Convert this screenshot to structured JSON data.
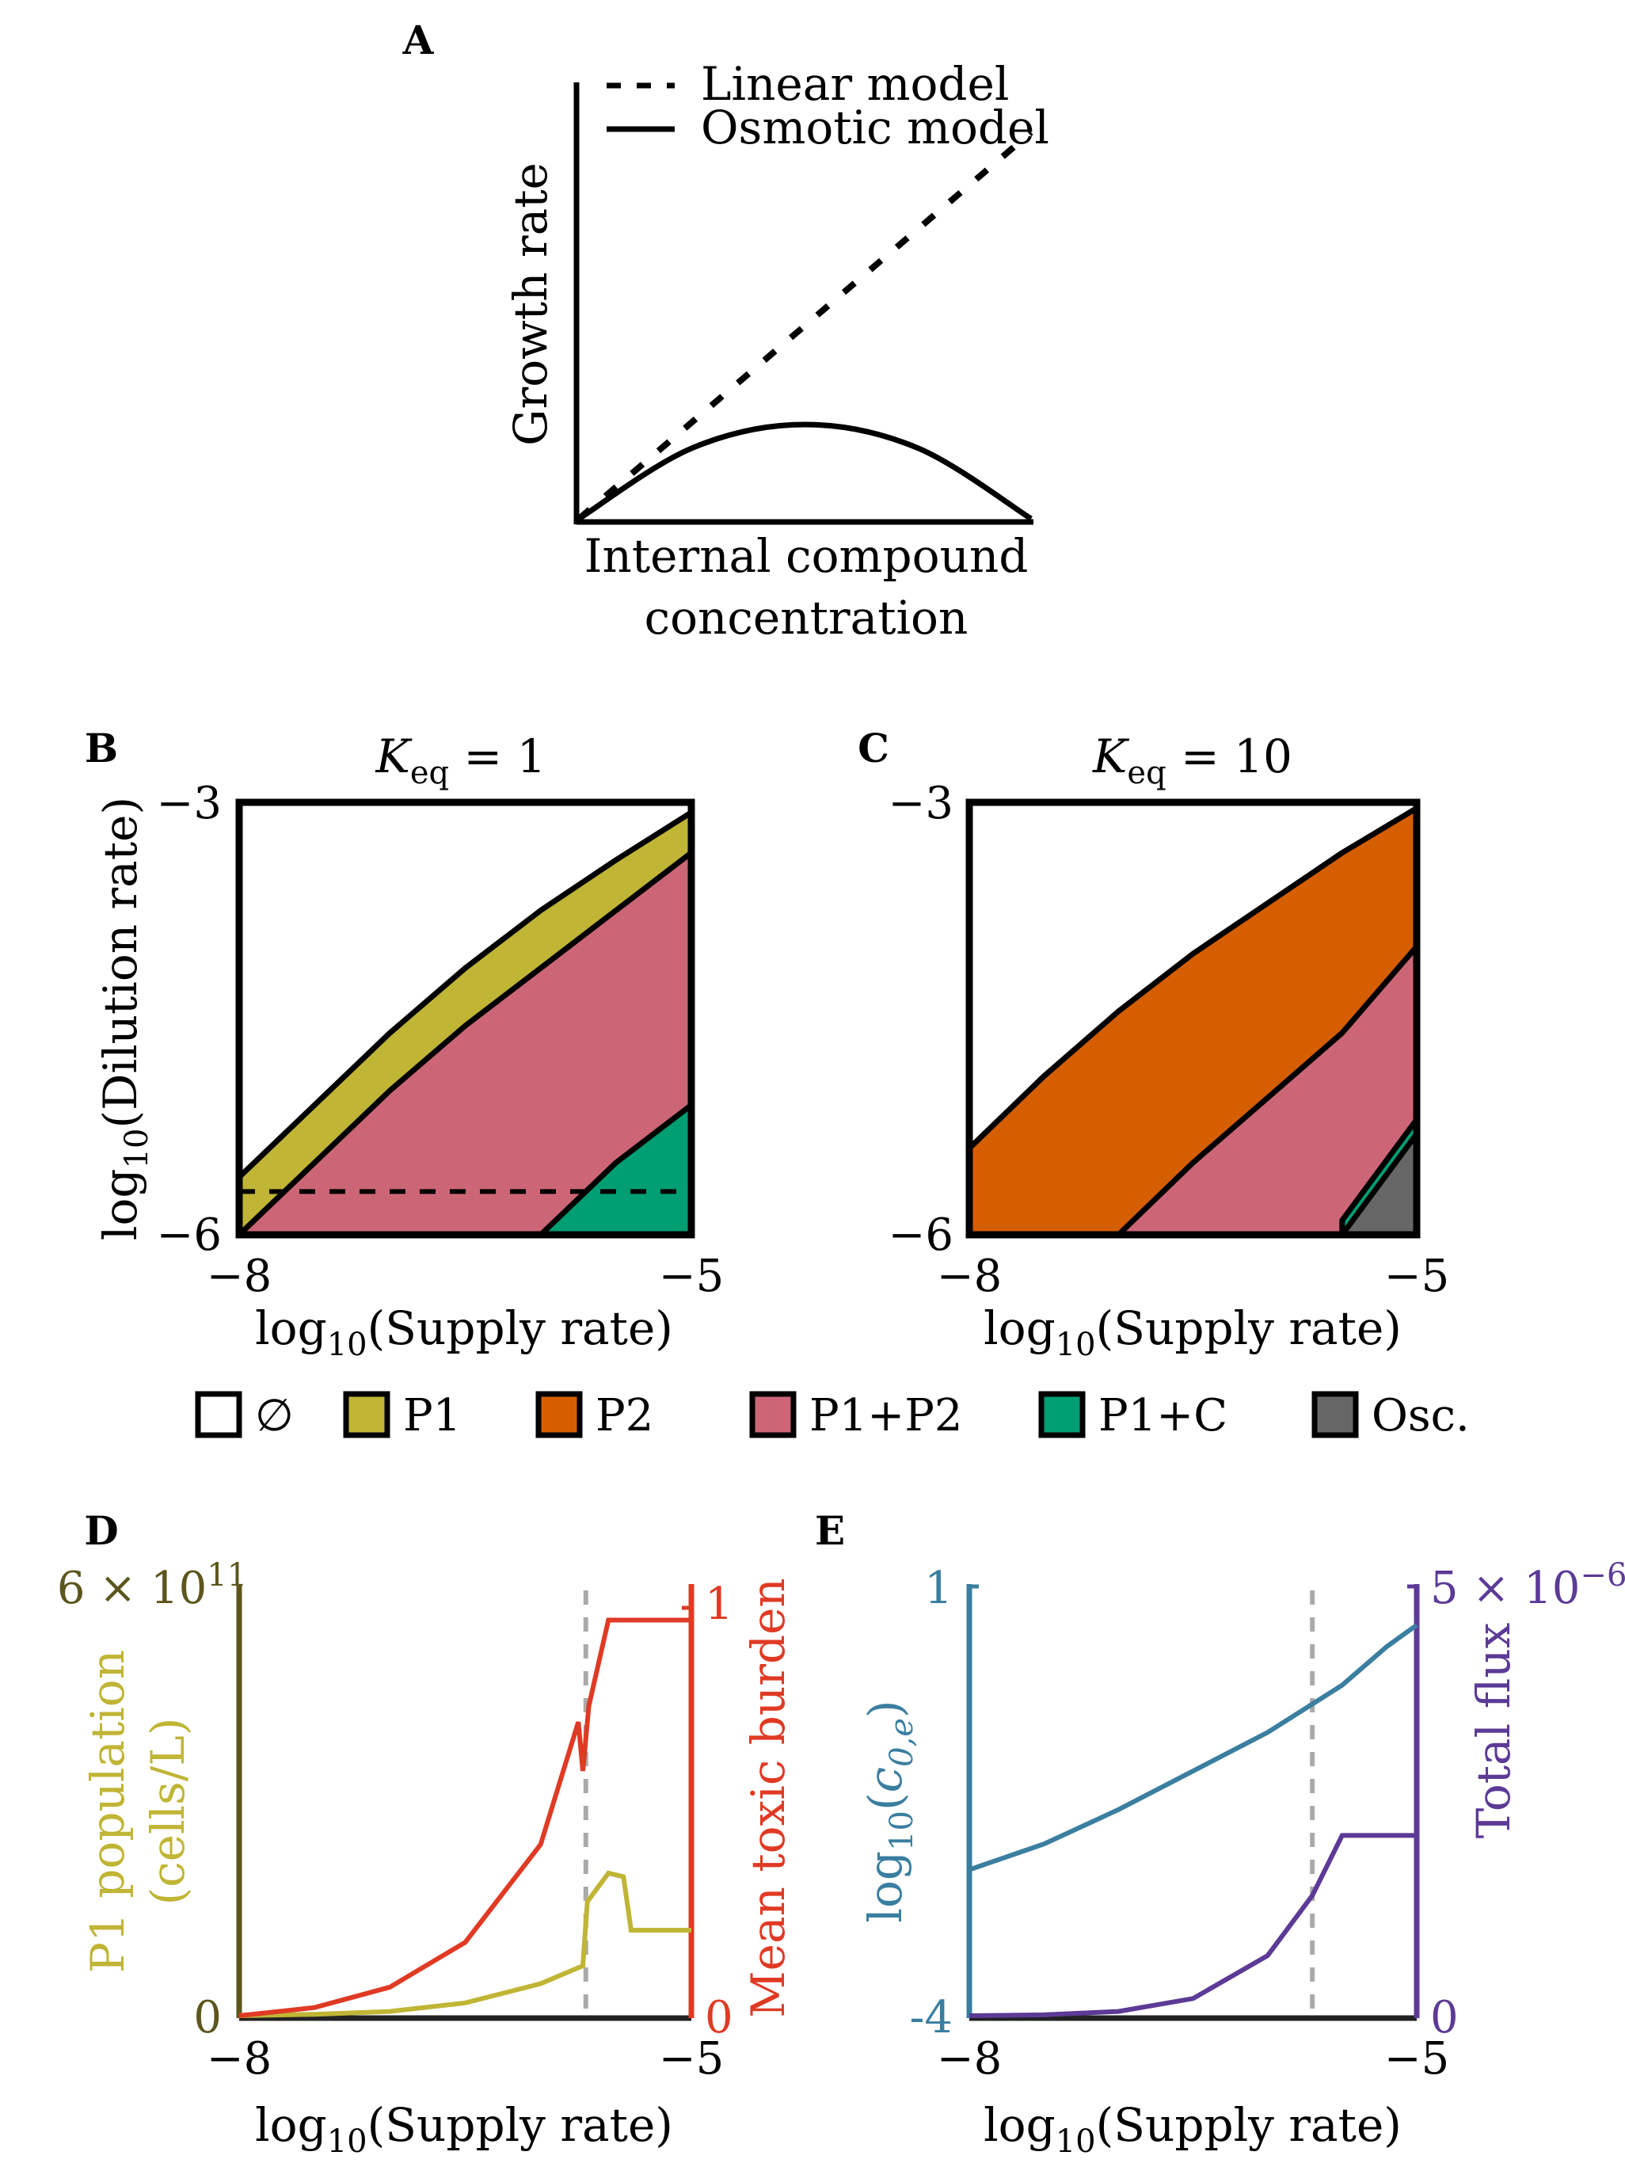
{
  "panels": {
    "A": {
      "label": "A",
      "ylabel": "Growth rate",
      "xlabel_line1": "Internal compound",
      "xlabel_line2": "concentration",
      "legend": [
        {
          "name": "Linear model",
          "style": "dashed"
        },
        {
          "name": "Osmotic model",
          "style": "solid"
        }
      ]
    },
    "B": {
      "label": "B",
      "title_var": "K",
      "title_sub": "eq",
      "title_rest": " = 1",
      "ylabel_pre": "log",
      "ylabel_sub": "10",
      "ylabel_post": "(Dilution rate)",
      "xlabel_pre": "log",
      "xlabel_sub": "10",
      "xlabel_post": "(Supply rate)",
      "xticks": [
        "−8",
        "−5"
      ],
      "yticks": [
        "−3",
        "−6"
      ]
    },
    "C": {
      "label": "C",
      "title_var": "K",
      "title_sub": "eq",
      "title_rest": " = 10",
      "xlabel_pre": "log",
      "xlabel_sub": "10",
      "xlabel_post": "(Supply rate)",
      "xticks": [
        "−8",
        "−5"
      ],
      "yticks": [
        "−3",
        "−6"
      ]
    },
    "D": {
      "label": "D",
      "left_axis_line1": "P1 population",
      "left_axis_line2": "(cells/L)",
      "right_axis_label": "Mean toxic burden",
      "left_top_pre": "6 × 10",
      "left_top_exp": "11",
      "left_bottom": "0",
      "right_top": "1",
      "right_bottom": "0",
      "xlabel_pre": "log",
      "xlabel_sub": "10",
      "xlabel_post": "(Supply rate)",
      "xticks": [
        "−8",
        "−5"
      ]
    },
    "E": {
      "label": "E",
      "left_axis_pre": "log",
      "left_axis_sub": "10",
      "left_axis_mid": "(",
      "left_axis_var": "c",
      "left_axis_var_sub": "0,e",
      "left_axis_post": ")",
      "right_axis_label": "Total flux",
      "left_top": "1",
      "left_bottom": "-4",
      "right_top_pre": "5 × 10",
      "right_top_exp": "−6",
      "right_bottom": "0",
      "xlabel_pre": "log",
      "xlabel_sub": "10",
      "xlabel_post": "(Supply rate)",
      "xticks": [
        "−8",
        "−5"
      ]
    }
  },
  "region_legend": [
    {
      "key": "empty",
      "label": "∅",
      "color": "#ffffff"
    },
    {
      "key": "P1",
      "label": "P1",
      "color": "#c0b535"
    },
    {
      "key": "P2",
      "label": "P2",
      "color": "#d55e00"
    },
    {
      "key": "P1P2",
      "label": "P1+P2",
      "color": "#cc6677"
    },
    {
      "key": "P1C",
      "label": "P1+C",
      "color": "#009e73"
    },
    {
      "key": "Osc",
      "label": "Osc.",
      "color": "#666666"
    }
  ],
  "colors": {
    "P1": "#c0b535",
    "P2": "#d55e00",
    "P1P2": "#cc6677",
    "P1C": "#009e73",
    "Osc": "#666666",
    "population_axis": "#5c561d",
    "toxic_burden": "#e03a24",
    "concentration": "#3a7ea0",
    "flux": "#5c3a96",
    "marker_line": "#aaaaaa"
  },
  "chart_data": [
    {
      "type": "line",
      "panel": "A",
      "xlabel": "Internal compound concentration",
      "ylabel": "Growth rate",
      "xlim": [
        0,
        1
      ],
      "ylim": [
        0,
        1
      ],
      "series": [
        {
          "name": "Linear model",
          "x": [
            0,
            1
          ],
          "y": [
            0,
            0.82
          ]
        },
        {
          "name": "Osmotic model",
          "x": [
            0,
            0.25,
            0.5,
            0.75,
            1
          ],
          "y": [
            0,
            0.15,
            0.2,
            0.15,
            0
          ]
        }
      ]
    },
    {
      "type": "area",
      "panel": "B",
      "xlabel": "log10(Supply rate)",
      "ylabel": "log10(Dilution rate)",
      "xlim": [
        -8,
        -5
      ],
      "ylim": [
        -6,
        -3
      ],
      "x": [
        -8.0,
        -7.5,
        -7.0,
        -6.5,
        -6.0,
        -5.5,
        -5.0
      ],
      "boundaries": {
        "upper_P1": [
          -5.6,
          -5.1,
          -4.6,
          -4.15,
          -3.75,
          -3.4,
          -3.07
        ],
        "upper_P1P2": [
          -6.0,
          -5.5,
          -5.0,
          -4.55,
          -4.15,
          -3.75,
          -3.35
        ],
        "upper_P1C": [
          null,
          null,
          null,
          null,
          -6.0,
          -5.5,
          -5.1
        ]
      },
      "marker_y": -5.7
    },
    {
      "type": "area",
      "panel": "C",
      "xlabel": "log10(Supply rate)",
      "xlim": [
        -8,
        -5
      ],
      "ylim": [
        -6,
        -3
      ],
      "x": [
        -8.0,
        -7.5,
        -7.0,
        -6.5,
        -6.0,
        -5.5,
        -5.0
      ],
      "boundaries": {
        "upper_P2": [
          -5.4,
          -4.9,
          -4.45,
          -4.05,
          -3.7,
          -3.35,
          -3.04
        ],
        "upper_P1P2": [
          null,
          null,
          -6.0,
          -5.5,
          -5.05,
          -4.6,
          -4.0
        ],
        "upper_P1C": [
          null,
          null,
          null,
          null,
          null,
          -5.9,
          -5.2
        ],
        "upper_Osc": [
          null,
          null,
          null,
          null,
          null,
          -6.0,
          -5.3
        ]
      }
    },
    {
      "type": "line",
      "panel": "D",
      "xlabel": "log10(Supply rate)",
      "xlim": [
        -8,
        -5
      ],
      "marker_x": -5.7,
      "series": [
        {
          "name": "P1 population",
          "axis": "left",
          "ylim": [
            0,
            600000000000.0
          ],
          "x": [
            -8.0,
            -7.5,
            -7.0,
            -6.5,
            -6.0,
            -5.72,
            -5.69,
            -5.55,
            -5.45,
            -5.4,
            -5.2,
            -5.0
          ],
          "y": [
            0,
            2000000000.0,
            6000000000.0,
            18000000000.0,
            45000000000.0,
            70000000000.0,
            160000000000.0,
            200000000000.0,
            195000000000.0,
            120000000000.0,
            120000000000.0,
            120000000000.0
          ]
        },
        {
          "name": "Mean toxic burden",
          "axis": "right",
          "ylim": [
            0,
            1
          ],
          "x": [
            -8.0,
            -7.5,
            -7.0,
            -6.5,
            -6.0,
            -5.75,
            -5.72,
            -5.68,
            -5.55,
            -5.4,
            -5.0
          ],
          "y": [
            0,
            0.02,
            0.07,
            0.18,
            0.42,
            0.72,
            0.6,
            0.76,
            0.97,
            0.97,
            0.97
          ]
        }
      ]
    },
    {
      "type": "line",
      "panel": "E",
      "xlabel": "log10(Supply rate)",
      "xlim": [
        -8,
        -5
      ],
      "marker_x": -5.7,
      "series": [
        {
          "name": "log10(c0,e)",
          "axis": "left",
          "ylim": [
            -4,
            1
          ],
          "x": [
            -8.0,
            -7.5,
            -7.0,
            -6.5,
            -6.0,
            -5.5,
            -5.2,
            -5.0
          ],
          "y": [
            -2.3,
            -2.0,
            -1.6,
            -1.15,
            -0.7,
            -0.15,
            0.3,
            0.55
          ]
        },
        {
          "name": "Total flux",
          "axis": "right",
          "ylim": [
            0,
            5e-06
          ],
          "x": [
            -8.0,
            -7.5,
            -7.0,
            -6.5,
            -6.0,
            -5.7,
            -5.5,
            -5.0
          ],
          "y": [
            0,
            1e-08,
            5e-08,
            2e-07,
            7e-07,
            1.4e-06,
            2.1e-06,
            2.1e-06
          ]
        }
      ]
    }
  ]
}
